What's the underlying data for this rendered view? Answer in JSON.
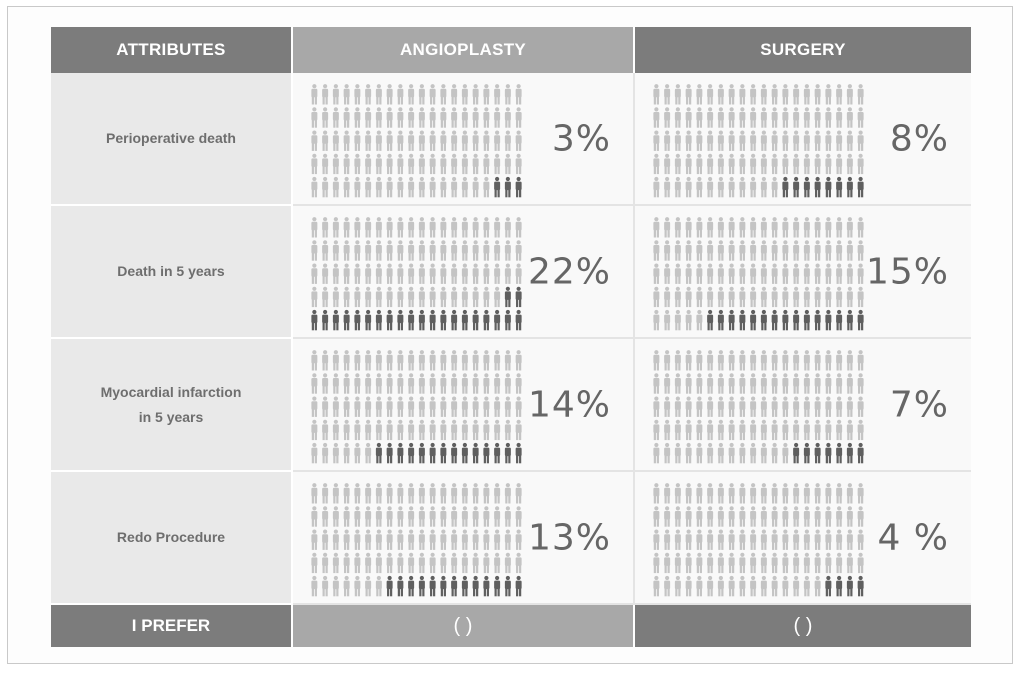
{
  "header": {
    "attributes": "ATTRIBUTES",
    "option_a": "ANGIOPLASTY",
    "option_b": "SURGERY"
  },
  "colors": {
    "highlight": "#5f5f5f",
    "base": "#c4c4c4"
  },
  "chart_data": {
    "type": "table",
    "icons_per_panel": 100,
    "columns": [
      "ANGIOPLASTY",
      "SURGERY"
    ],
    "rows": [
      {
        "label_lines": [
          "Perioperative death"
        ],
        "values": [
          3,
          8
        ],
        "labels": [
          "3%",
          "8%"
        ]
      },
      {
        "label_lines": [
          "Death in 5 years"
        ],
        "values": [
          22,
          15
        ],
        "labels": [
          "22%",
          "15%"
        ]
      },
      {
        "label_lines": [
          "Myocardial infarction",
          "in 5 years"
        ],
        "values": [
          14,
          7
        ],
        "labels": [
          "14%",
          "7%"
        ]
      },
      {
        "label_lines": [
          "Redo Procedure"
        ],
        "values": [
          13,
          4
        ],
        "labels": [
          "13%",
          "4 %"
        ]
      }
    ]
  },
  "footer": {
    "label": "I PREFER",
    "choice_a": "(     )",
    "choice_b": "(     )"
  }
}
